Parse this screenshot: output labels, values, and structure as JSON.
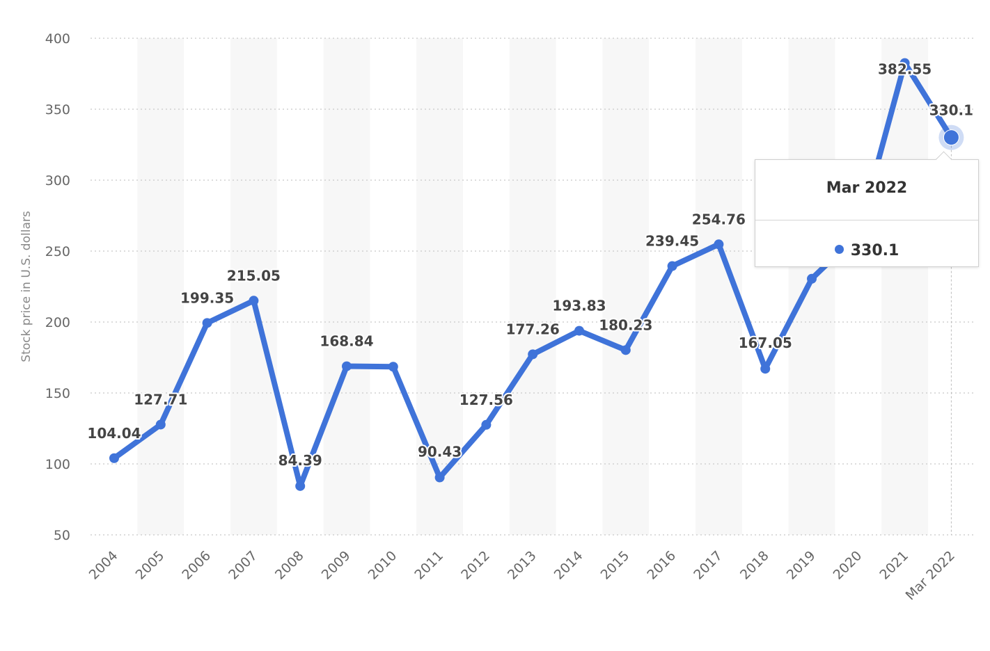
{
  "chart_data": {
    "type": "line",
    "categories": [
      "2004",
      "2005",
      "2006",
      "2007",
      "2008",
      "2009",
      "2010",
      "2011",
      "2012",
      "2013",
      "2014",
      "2015",
      "2016",
      "2017",
      "2018",
      "2019",
      "2020",
      "2021",
      "Mar 2022"
    ],
    "values": [
      104.04,
      127.71,
      199.35,
      215.05,
      84.39,
      168.84,
      168.5,
      90.43,
      127.56,
      177.26,
      193.83,
      180.23,
      239.45,
      254.76,
      167.05,
      230.5,
      262,
      382.55,
      330.1
    ],
    "data_labels": [
      "104.04",
      "127.71",
      "199.35",
      "215.05",
      "84.39",
      "168.84",
      "",
      "90.43",
      "127.56",
      "177.26",
      "193.83",
      "180.23",
      "239.45",
      "254.76",
      "167.05",
      "",
      "",
      "382.55",
      "330.1"
    ],
    "ylabel": "Stock price in U.S. dollars",
    "yticks": [
      50,
      100,
      150,
      200,
      250,
      300,
      350,
      400
    ],
    "ylim": [
      50,
      400
    ],
    "grid": "horizontal dotted",
    "colors": {
      "line": "#3f73d9",
      "band": "#f7f7f7",
      "grid": "#c8c8c8"
    }
  },
  "tooltip": {
    "title": "Mar 2022",
    "value": "330.1"
  }
}
